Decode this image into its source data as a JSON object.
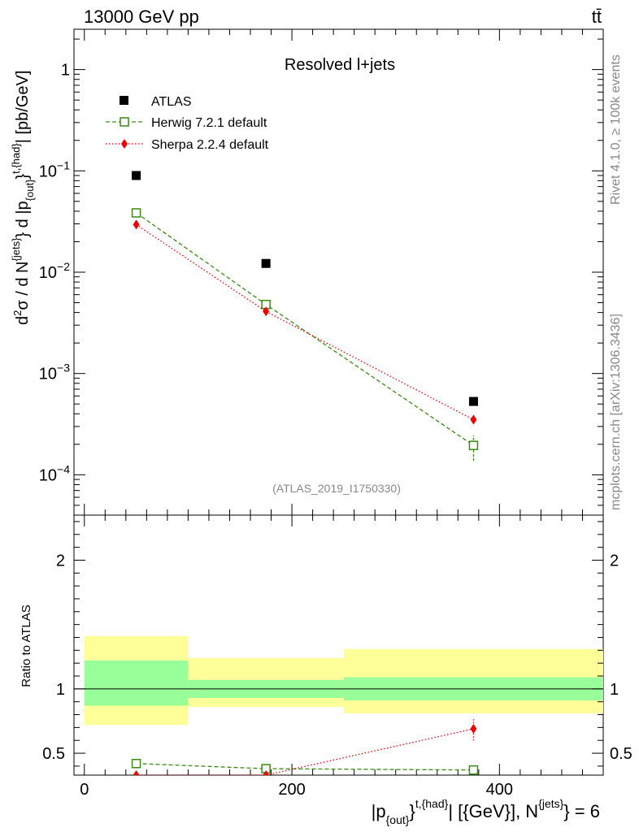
{
  "header": {
    "left": "13000 GeV pp",
    "right": "tt̄"
  },
  "side_text": {
    "rivet": "Rivet 4.1.0, ≥ 100k events",
    "mcplots": "mcplots.cern.ch [arXiv:1306.3436]"
  },
  "chart_data": [
    {
      "type": "scatter",
      "panel": "main",
      "title": "Resolved l+jets",
      "analysis_label": "(ATLAS_2019_I1750330)",
      "yscale": "log",
      "ylim": [
        4e-05,
        2.5
      ],
      "xlim": [
        -10,
        500
      ],
      "ylabel": {
        "p1": "d",
        "p1sup": "2",
        "p2": "σ / d N",
        "p2sup": "{jets}",
        "p3": "} d |p",
        "p3sub": "{out}",
        "p4": "}",
        "p4sup": "t,{had}",
        "p5": "| [pb/GeV]"
      },
      "yticks": [
        {
          "value": 1,
          "base": "1",
          "exp": ""
        },
        {
          "value": 0.1,
          "base": "10",
          "exp": "−1"
        },
        {
          "value": 0.01,
          "base": "10",
          "exp": "−2"
        },
        {
          "value": 0.001,
          "base": "10",
          "exp": "−3"
        },
        {
          "value": 0.0001,
          "base": "10",
          "exp": "−4"
        }
      ],
      "legend": [
        {
          "key": "atlas",
          "label": "ATLAS"
        },
        {
          "key": "herwig",
          "label": "Herwig 7.2.1 default"
        },
        {
          "key": "sherpa",
          "label": "Sherpa 2.2.4 default"
        }
      ],
      "series": [
        {
          "key": "atlas",
          "name": "ATLAS",
          "color": "#000000",
          "points": [
            {
              "x": 50,
              "y": 0.09
            },
            {
              "x": 175,
              "y": 0.0122
            },
            {
              "x": 375,
              "y": 0.00053
            }
          ]
        },
        {
          "key": "herwig",
          "name": "Herwig 7.2.1 default",
          "color": "#3a8a14",
          "points": [
            {
              "x": 50,
              "y": 0.0385,
              "ylo": 0.0375,
              "yhi": 0.0395
            },
            {
              "x": 175,
              "y": 0.0048,
              "ylo": 0.0046,
              "yhi": 0.005
            },
            {
              "x": 375,
              "y": 0.000195,
              "ylo": 0.000138,
              "yhi": 0.000245
            }
          ]
        },
        {
          "key": "sherpa",
          "name": "Sherpa 2.2.4 default",
          "color": "#ee0000",
          "points": [
            {
              "x": 50,
              "y": 0.0295,
              "ylo": 0.0288,
              "yhi": 0.0302
            },
            {
              "x": 175,
              "y": 0.0041,
              "ylo": 0.004,
              "yhi": 0.0042
            },
            {
              "x": 375,
              "y": 0.00035,
              "ylo": 0.00032,
              "yhi": 0.00038
            }
          ]
        }
      ]
    },
    {
      "type": "scatter",
      "panel": "ratio",
      "ylabel": "Ratio to ATLAS",
      "xlabel": {
        "p1": "|p",
        "p1sub": "{out}",
        "p2": "}",
        "p2sup": "t,{had}",
        "p3": "| [{GeV}], N",
        "p3sup": "{jets}",
        "p4": "} = 6"
      },
      "xlim": [
        -10,
        500
      ],
      "ylim": [
        0.33,
        2.35
      ],
      "xticks": [
        {
          "value": 0,
          "label": "0"
        },
        {
          "value": 200,
          "label": "200"
        },
        {
          "value": 400,
          "label": "400"
        }
      ],
      "yticks": [
        {
          "value": 2,
          "label": "2"
        },
        {
          "value": 1,
          "label": "1"
        },
        {
          "value": 0.5,
          "label": "0.5"
        }
      ],
      "bands": [
        {
          "x0": 0,
          "x1": 100,
          "yellow": [
            0.72,
            1.41
          ],
          "green": [
            0.87,
            1.22
          ]
        },
        {
          "x0": 100,
          "x1": 250,
          "yellow": [
            0.86,
            1.24
          ],
          "green": [
            0.93,
            1.07
          ]
        },
        {
          "x0": 250,
          "x1": 500,
          "yellow": [
            0.81,
            1.31
          ],
          "green": [
            0.91,
            1.09
          ]
        }
      ],
      "series": [
        {
          "key": "herwig",
          "name": "Herwig 7.2.1 default",
          "color": "#3a8a14",
          "points": [
            {
              "x": 50,
              "y": 0.42
            },
            {
              "x": 175,
              "y": 0.38
            },
            {
              "x": 375,
              "y": 0.37
            }
          ]
        },
        {
          "key": "sherpa",
          "name": "Sherpa 2.2.4 default",
          "color": "#ee0000",
          "points": [
            {
              "x": 50,
              "y": 0.33
            },
            {
              "x": 175,
              "y": 0.33
            },
            {
              "x": 375,
              "y": 0.69,
              "ylo": 0.6,
              "yhi": 0.77
            }
          ]
        }
      ]
    }
  ]
}
